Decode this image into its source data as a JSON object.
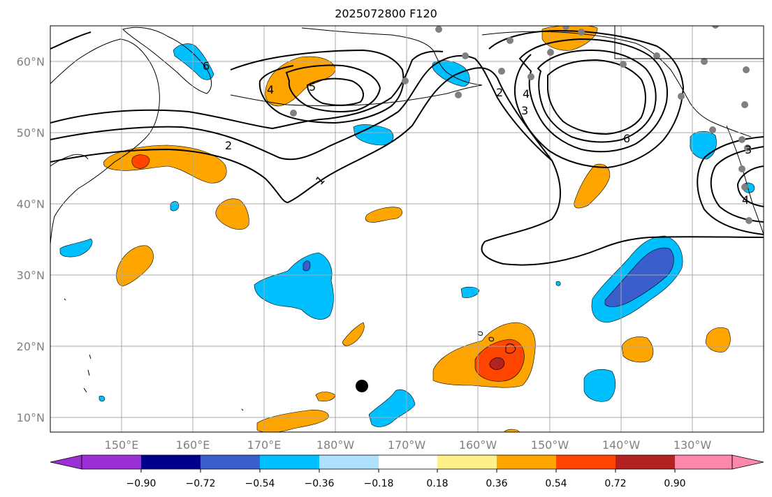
{
  "title": "2025072800 F120",
  "map": {
    "lon_ticks": [
      "150°E",
      "160°E",
      "170°E",
      "180°W",
      "170°W",
      "160°W",
      "150°W",
      "140°W",
      "130°W"
    ],
    "lat_ticks": [
      "60°N",
      "50°N",
      "40°N",
      "30°N",
      "20°N",
      "10°N"
    ],
    "contour_labels": [
      "1",
      "2",
      "2",
      "3",
      "4",
      "4",
      "5",
      "6",
      "6",
      "4",
      "3"
    ],
    "marker": "black-dot"
  },
  "colorbar": {
    "labels": [
      "−0.90",
      "−0.72",
      "−0.54",
      "−0.36",
      "−0.18",
      "0.18",
      "0.36",
      "0.54",
      "0.72",
      "0.90"
    ],
    "colors": [
      "#9b30d9",
      "#00008b",
      "#3a5fcd",
      "#00bfff",
      "#b0e2ff",
      "#ffffff",
      "#fff08c",
      "#ffa500",
      "#ff4500",
      "#b22222",
      "#ff88aa"
    ]
  },
  "colors": {
    "neg_light": "#00bfff",
    "neg_dark": "#3a5fcd",
    "pos_light": "#ffa500",
    "pos_mid": "#ff4500",
    "pos_dark": "#b22222",
    "station": "#808080"
  }
}
